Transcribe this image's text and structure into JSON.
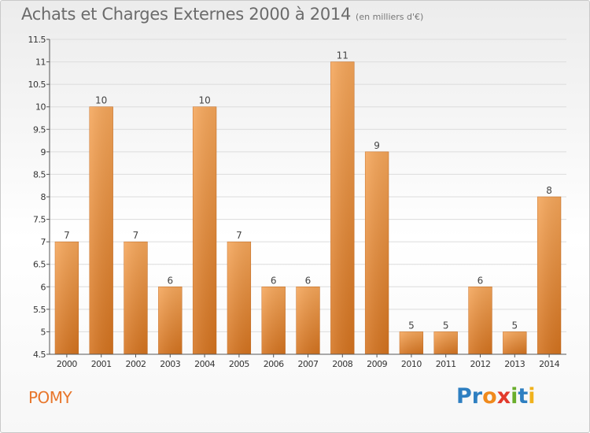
{
  "title": "Achats et Charges Externes 2000 à 2014",
  "subtitle": "(en milliers d'€)",
  "commune": "POMY",
  "logo": {
    "letters": [
      "P",
      "r",
      "o",
      "x",
      "i",
      "t",
      "i"
    ],
    "colors": [
      "#2e7fc1",
      "#2e7fc1",
      "#f08a1c",
      "#e23a2c",
      "#6aae2c",
      "#2e7fc1",
      "#f0b21c"
    ]
  },
  "chart_data": {
    "type": "bar",
    "categories": [
      "2000",
      "2001",
      "2002",
      "2003",
      "2004",
      "2005",
      "2006",
      "2007",
      "2008",
      "2009",
      "2010",
      "2011",
      "2012",
      "2013",
      "2014"
    ],
    "values": [
      7,
      10,
      7,
      6,
      10,
      7,
      6,
      6,
      11,
      9,
      5,
      5,
      6,
      5,
      8
    ],
    "value_labels": [
      "7",
      "10",
      "7",
      "6",
      "10",
      "7",
      "6",
      "6",
      "11",
      "9",
      "5",
      "5",
      "6",
      "5",
      "8"
    ],
    "ylim": [
      4.5,
      11.5
    ],
    "yticks": [
      4.5,
      5,
      5.5,
      6,
      6.5,
      7,
      7.5,
      8,
      8.5,
      9,
      9.5,
      10,
      10.5,
      11,
      11.5
    ],
    "ytick_labels": [
      "4.5",
      "5",
      "5.5",
      "6",
      "6.5",
      "7",
      "7.5",
      "8",
      "8.5",
      "9",
      "9.5",
      "10",
      "10.5",
      "11",
      "11.5"
    ],
    "grid": true,
    "bar_color_top": "#f5a65a",
    "bar_color_bottom": "#d4731f"
  }
}
